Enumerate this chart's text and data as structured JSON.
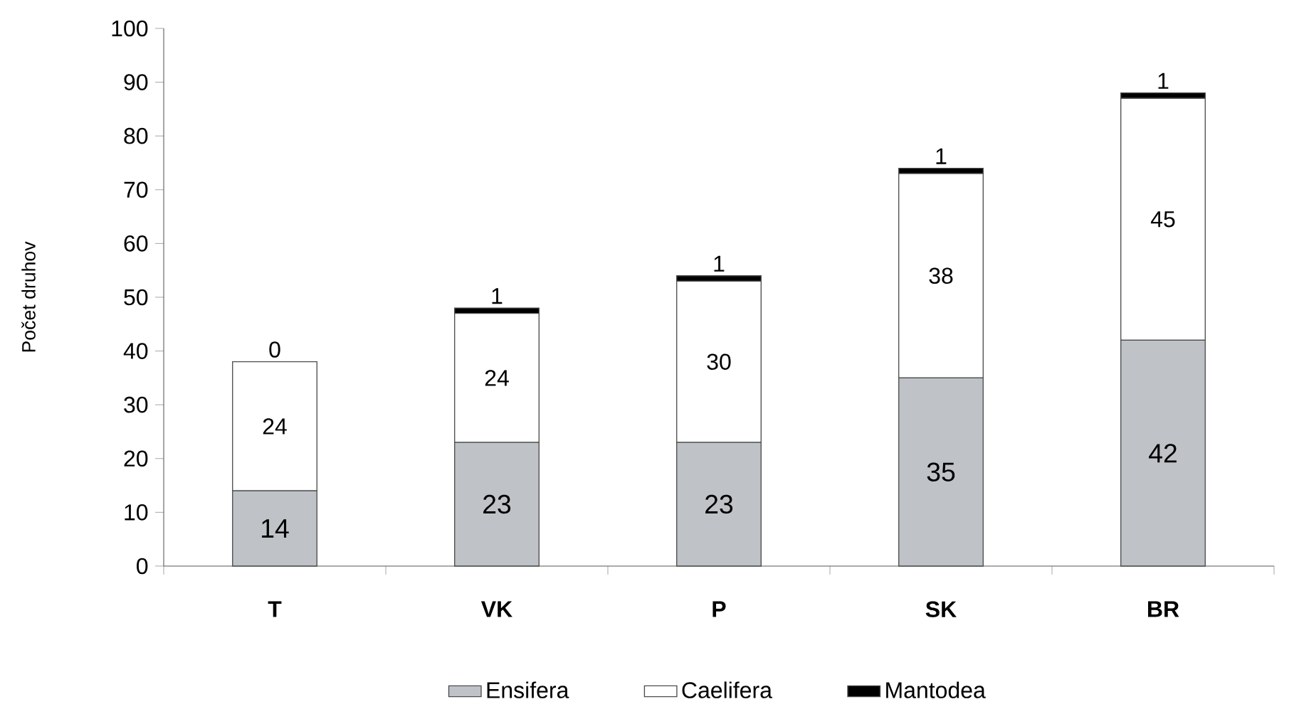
{
  "chart_data": {
    "type": "bar",
    "stacked": true,
    "ylabel": "Počet druhov",
    "categories": [
      "T",
      "VK",
      "P",
      "SK",
      "BR"
    ],
    "series": [
      {
        "name": "Ensifera",
        "color": "#bfc3c7",
        "values": [
          14,
          23,
          23,
          35,
          42
        ]
      },
      {
        "name": "Caelifera",
        "color": "#ffffff",
        "values": [
          24,
          24,
          30,
          38,
          45
        ]
      },
      {
        "name": "Mantodea",
        "color": "#000000",
        "values": [
          0,
          1,
          1,
          1,
          1
        ]
      }
    ],
    "ylim": [
      0,
      100
    ],
    "yticks": [
      0,
      10,
      20,
      30,
      40,
      50,
      60,
      70,
      80,
      90,
      100
    ],
    "data_labels": true,
    "legend": "bottom",
    "grid": false
  }
}
